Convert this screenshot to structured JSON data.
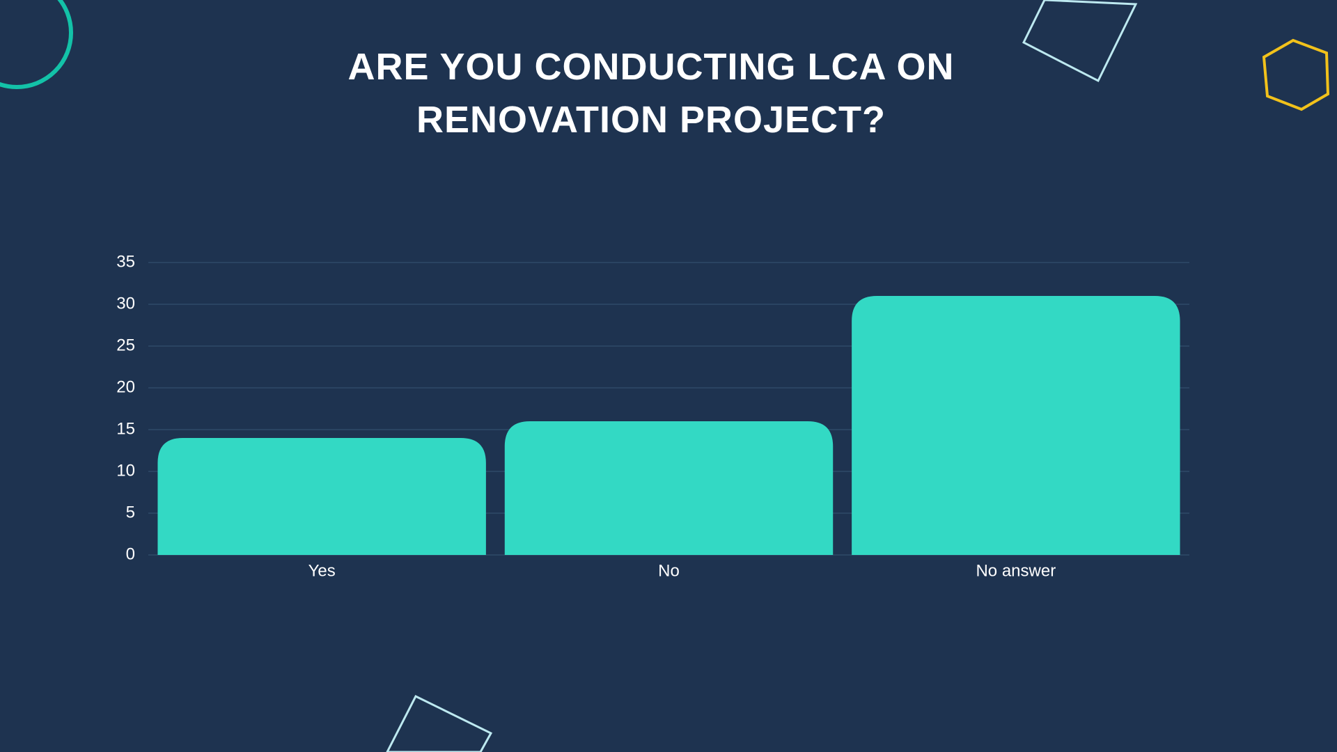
{
  "chart_data": {
    "type": "bar",
    "title": "ARE YOU CONDUCTING LCA ON RENOVATION PROJECT?",
    "categories": [
      "Yes",
      "No",
      "No answer"
    ],
    "values": [
      14,
      16,
      31
    ],
    "color": "#33d9c4",
    "ylim": [
      0,
      35
    ],
    "yticks": [
      0,
      5,
      10,
      15,
      20,
      25,
      30,
      35
    ],
    "grid": true
  }
}
